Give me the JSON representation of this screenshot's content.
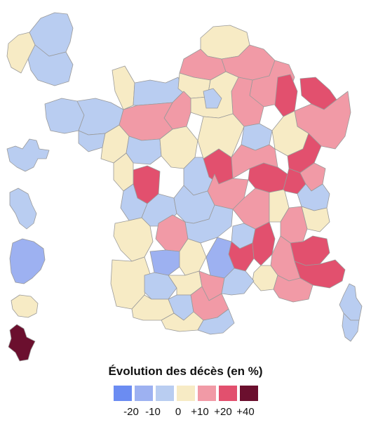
{
  "legend": {
    "title": "Évolution des décès (en %)",
    "classes": [
      {
        "label": "-20",
        "color": "#6b8cf2"
      },
      {
        "label": "-10",
        "color": "#9db1f1"
      },
      {
        "label": "0",
        "color": "#b9cdf1"
      },
      {
        "label": "+10",
        "color": "#f7ebc5"
      },
      {
        "label": "+20",
        "color": "#f19aa6"
      },
      {
        "label": "+40",
        "color": "#e2506e"
      },
      {
        "label": "",
        "color": "#6b0f2e"
      }
    ],
    "tick_labels": [
      "-20",
      "-10",
      "0",
      "+10",
      "+20",
      "+40"
    ]
  },
  "map": {
    "title": "",
    "palette": {
      "strong_decrease": "#6b8cf2",
      "decrease": "#9db1f1",
      "slight_decrease": "#b9cdf1",
      "slight_increase": "#f7ebc5",
      "increase": "#f19aa6",
      "strong_increase": "#e2506e",
      "very_strong_increase": "#6b0f2e",
      "border": "#9a9a9a"
    }
  }
}
